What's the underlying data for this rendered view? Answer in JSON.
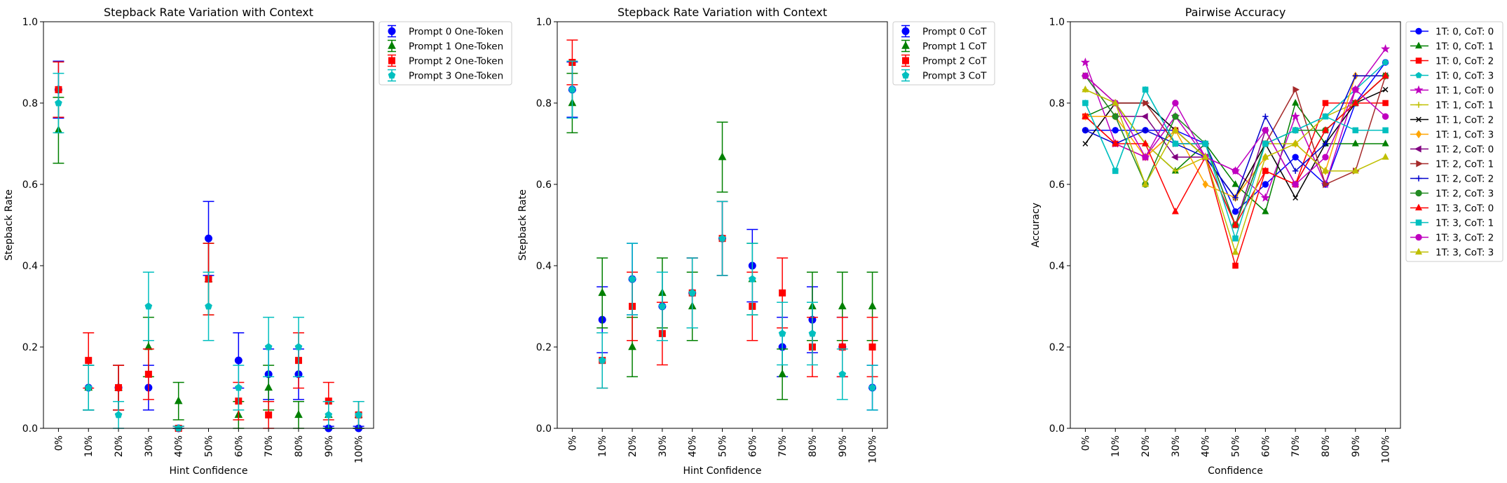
{
  "x_categories": [
    "0%",
    "10%",
    "20%",
    "30%",
    "40%",
    "50%",
    "60%",
    "70%",
    "80%",
    "90%",
    "100%"
  ],
  "chart_data": [
    {
      "type": "scatter",
      "title": "Stepback Rate Variation with Context",
      "xlabel": "Hint Confidence",
      "ylabel": "Stepback Rate",
      "ylim": [
        0,
        1.0
      ],
      "yticks": [
        "0.0",
        "0.2",
        "0.4",
        "0.6",
        "0.8",
        "1.0"
      ],
      "error_bars": true,
      "legend_position": "outside upper right",
      "series": [
        {
          "name": "Prompt 0 One-Token",
          "color": "#0000ff",
          "marker": "circle",
          "values": [
            0.833,
            0.1,
            0.1,
            0.1,
            0.0,
            0.467,
            0.167,
            0.133,
            0.133,
            0.0,
            0.0
          ],
          "err": [
            0.07,
            0.055,
            0.055,
            0.055,
            0.005,
            0.091,
            0.068,
            0.062,
            0.062,
            0.005,
            0.005
          ]
        },
        {
          "name": "Prompt 1 One-Token",
          "color": "#008000",
          "marker": "triangle",
          "values": [
            0.733,
            0.1,
            0.1,
            0.2,
            0.067,
            0.367,
            0.033,
            0.1,
            0.033,
            0.033,
            0.033
          ],
          "err": [
            0.081,
            0.055,
            0.055,
            0.073,
            0.046,
            0.088,
            0.033,
            0.055,
            0.033,
            0.033,
            0.033
          ]
        },
        {
          "name": "Prompt 2 One-Token",
          "color": "#ff0000",
          "marker": "square",
          "values": [
            0.833,
            0.167,
            0.1,
            0.133,
            0.0,
            0.367,
            0.067,
            0.033,
            0.167,
            0.067,
            0.033
          ],
          "err": [
            0.068,
            0.068,
            0.055,
            0.062,
            0.005,
            0.088,
            0.046,
            0.033,
            0.068,
            0.046,
            0.033
          ]
        },
        {
          "name": "Prompt 3 One-Token",
          "color": "#00bfbf",
          "marker": "pentagon",
          "values": [
            0.8,
            0.1,
            0.033,
            0.3,
            0.0,
            0.3,
            0.1,
            0.2,
            0.2,
            0.033,
            0.033
          ],
          "err": [
            0.073,
            0.055,
            0.033,
            0.084,
            0.005,
            0.084,
            0.055,
            0.073,
            0.073,
            0.033,
            0.033
          ]
        }
      ]
    },
    {
      "type": "scatter",
      "title": "Stepback Rate Variation with Context",
      "xlabel": "Hint Confidence",
      "ylabel": "Stepback Rate",
      "ylim": [
        0,
        1.0
      ],
      "yticks": [
        "0.0",
        "0.2",
        "0.4",
        "0.6",
        "0.8",
        "1.0"
      ],
      "error_bars": true,
      "legend_position": "outside upper right",
      "series": [
        {
          "name": "Prompt 0 CoT",
          "color": "#0000ff",
          "marker": "circle",
          "values": [
            0.833,
            0.267,
            0.367,
            0.3,
            0.333,
            0.467,
            0.4,
            0.2,
            0.267,
            0.2,
            0.1
          ],
          "err": [
            0.068,
            0.081,
            0.088,
            0.084,
            0.086,
            0.091,
            0.089,
            0.073,
            0.081,
            0.073,
            0.055
          ]
        },
        {
          "name": "Prompt 1 CoT",
          "color": "#008000",
          "marker": "triangle",
          "values": [
            0.8,
            0.333,
            0.2,
            0.333,
            0.3,
            0.667,
            0.367,
            0.133,
            0.3,
            0.3,
            0.3
          ],
          "err": [
            0.073,
            0.086,
            0.073,
            0.086,
            0.084,
            0.086,
            0.088,
            0.062,
            0.084,
            0.084,
            0.084
          ]
        },
        {
          "name": "Prompt 2 CoT",
          "color": "#ff0000",
          "marker": "square",
          "values": [
            0.9,
            0.167,
            0.3,
            0.233,
            0.333,
            0.467,
            0.3,
            0.333,
            0.2,
            0.2,
            0.2
          ],
          "err": [
            0.055,
            0.068,
            0.084,
            0.077,
            0.086,
            0.091,
            0.084,
            0.086,
            0.073,
            0.073,
            0.073
          ]
        },
        {
          "name": "Prompt 3 CoT",
          "color": "#00bfbf",
          "marker": "pentagon",
          "values": [
            0.833,
            0.167,
            0.367,
            0.3,
            0.333,
            0.467,
            0.367,
            0.233,
            0.233,
            0.133,
            0.1
          ],
          "err": [
            0.07,
            0.068,
            0.088,
            0.084,
            0.086,
            0.091,
            0.088,
            0.077,
            0.077,
            0.062,
            0.055
          ]
        }
      ]
    },
    {
      "type": "line",
      "title": "Pairwise Accuracy",
      "xlabel": "Confidence",
      "ylabel": "Accuracy",
      "ylim": [
        0,
        1.0
      ],
      "yticks": [
        "0.0",
        "0.2",
        "0.4",
        "0.6",
        "0.8",
        "1.0"
      ],
      "legend_position": "outside upper right",
      "series": [
        {
          "name": "1T: 0, CoT: 0",
          "color": "#0000ff",
          "marker": "circle",
          "values": [
            0.733,
            0.733,
            0.733,
            0.733,
            0.7,
            0.533,
            0.6,
            0.667,
            0.6,
            0.8,
            0.9
          ]
        },
        {
          "name": "1T: 0, CoT: 1",
          "color": "#008000",
          "marker": "triangle",
          "values": [
            0.767,
            0.8,
            0.7,
            0.633,
            0.7,
            0.6,
            0.533,
            0.8,
            0.7,
            0.7,
            0.7
          ]
        },
        {
          "name": "1T: 0, CoT: 2",
          "color": "#ff0000",
          "marker": "square",
          "values": [
            0.767,
            0.7,
            0.667,
            0.733,
            0.667,
            0.4,
            0.633,
            0.6,
            0.8,
            0.8,
            0.8
          ]
        },
        {
          "name": "1T: 0, CoT: 3",
          "color": "#00bfbf",
          "marker": "pentagon",
          "values": [
            0.8,
            0.633,
            0.833,
            0.7,
            0.7,
            0.5,
            0.7,
            0.733,
            0.767,
            0.833,
            0.9
          ]
        },
        {
          "name": "1T: 1, CoT: 0",
          "color": "#bf00bf",
          "marker": "star",
          "values": [
            0.9,
            0.7,
            0.667,
            0.767,
            0.667,
            0.633,
            0.567,
            0.767,
            0.6,
            0.833,
            0.933
          ]
        },
        {
          "name": "1T: 1, CoT: 1",
          "color": "#bfbf00",
          "marker": "plus",
          "values": [
            0.833,
            0.8,
            0.7,
            0.633,
            0.667,
            0.567,
            0.7,
            0.7,
            0.767,
            0.8,
            0.867
          ]
        },
        {
          "name": "1T: 1, CoT: 2",
          "color": "#000000",
          "marker": "x",
          "values": [
            0.7,
            0.8,
            0.8,
            0.733,
            0.667,
            0.567,
            0.7,
            0.567,
            0.7,
            0.8,
            0.833
          ]
        },
        {
          "name": "1T: 1, CoT: 3",
          "color": "#ffa500",
          "marker": "diamond",
          "values": [
            0.767,
            0.767,
            0.667,
            0.733,
            0.6,
            0.567,
            0.667,
            0.7,
            0.633,
            0.867,
            0.867
          ]
        },
        {
          "name": "1T: 2, CoT: 0",
          "color": "#800080",
          "marker": "triangle-left",
          "values": [
            0.867,
            0.767,
            0.767,
            0.667,
            0.667,
            0.5,
            0.733,
            0.6,
            0.733,
            0.8,
            0.867
          ]
        },
        {
          "name": "1T: 2, CoT: 1",
          "color": "#a52a2a",
          "marker": "triangle-right",
          "values": [
            0.867,
            0.8,
            0.8,
            0.7,
            0.7,
            0.5,
            0.7,
            0.833,
            0.6,
            0.633,
            0.867
          ]
        },
        {
          "name": "1T: 2, CoT: 2",
          "color": "#0000cd",
          "marker": "plus",
          "values": [
            0.733,
            0.7,
            0.733,
            0.7,
            0.667,
            0.567,
            0.767,
            0.633,
            0.7,
            0.867,
            0.867
          ]
        },
        {
          "name": "1T: 2, CoT: 3",
          "color": "#228b22",
          "marker": "circle",
          "values": [
            0.867,
            0.767,
            0.6,
            0.767,
            0.7,
            0.5,
            0.7,
            0.733,
            0.733,
            0.8,
            0.867
          ]
        },
        {
          "name": "1T: 3, CoT: 0",
          "color": "#ff0000",
          "marker": "triangle",
          "values": [
            0.767,
            0.7,
            0.7,
            0.533,
            0.667,
            0.5,
            0.633,
            0.6,
            0.733,
            0.8,
            0.867
          ]
        },
        {
          "name": "1T: 3, CoT: 1",
          "color": "#00bfbf",
          "marker": "square",
          "values": [
            0.8,
            0.633,
            0.833,
            0.7,
            0.7,
            0.467,
            0.7,
            0.733,
            0.767,
            0.733,
            0.733
          ]
        },
        {
          "name": "1T: 3, CoT: 2",
          "color": "#bf00bf",
          "marker": "circle",
          "values": [
            0.867,
            0.8,
            0.667,
            0.8,
            0.667,
            0.633,
            0.733,
            0.6,
            0.667,
            0.833,
            0.767
          ]
        },
        {
          "name": "1T: 3, CoT: 3",
          "color": "#bfbf00",
          "marker": "triangle",
          "values": [
            0.833,
            0.8,
            0.6,
            0.733,
            0.667,
            0.433,
            0.667,
            0.7,
            0.633,
            0.633,
            0.667
          ]
        }
      ]
    }
  ]
}
